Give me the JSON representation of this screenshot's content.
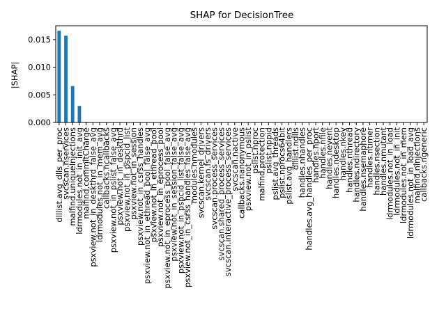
{
  "chart_data": {
    "type": "bar",
    "title": "SHAP for DecisionTree",
    "xlabel": "",
    "ylabel": "|SHAP|",
    "ylim": [
      0,
      0.0175
    ],
    "yticks": [
      "0.000",
      "0.005",
      "0.010",
      "0.015"
    ],
    "ytick_values": [
      0,
      0.005,
      0.01,
      0.015
    ],
    "bar_color": "#1f77b4",
    "grid": false,
    "legend": "none",
    "categories": [
      "dlllist.avg_dlls_per_proc",
      "svcscan.nservices",
      "malfind.uniqueInjections",
      "ldrmodules.not_in_init_avg",
      "malfind.commitCharge",
      "psxview.not_in_deskthrd_false_avg",
      "ldrmodules.not_in_mem_avg",
      "callbacks.ncallbacks",
      "psxview.not_in_pslist_false_avg",
      "psxview.not_in_deskthrd",
      "psxview.not_in_pspcid_list",
      "psxview.not_in_session",
      "psxview.not_in_csrss_handles",
      "psxview.not_in_ethread_pool_false_avg",
      "psxview.not_in_ethread_pool",
      "psxview.not_in_eprocess_pool",
      "psxview.not_in_eprocess_pool_false_avg",
      "psxview.not_in_session_false_avg",
      "psxview.not_in_pspcid_list_false_avg",
      "psxview.not_in_csrss_handles_false_avg",
      "modules.nmodules",
      "svcscan.kernel_drivers",
      "svcscan.fs_drivers",
      "svcscan.process_services",
      "svcscan.shared_process_services",
      "svcscan.interactive_process_services",
      "svcscan.nactive",
      "callbacks.nanonymous",
      "psxview.not_in_pslist",
      "pslist.nproc",
      "malfind.protection",
      "pslist.nppid",
      "pslist.avg_threads",
      "pslist.nprocs64bit",
      "pslist.avg_handlers",
      "dlllist.ndlls",
      "handles.nhandles",
      "handles.avg_handles_per_proc",
      "handles.nport",
      "handles.nfile",
      "handles.nevent",
      "handles.ndesktop",
      "handles.nkey",
      "handles.nthread",
      "handles.ndirectory",
      "handles.nsemaphore",
      "handles.ntimer",
      "handles.nsection",
      "handles.nmutant",
      "ldrmodules.not_in_load",
      "ldrmodules.not_in_init",
      "ldrmodules.not_in_mem",
      "ldrmodules.not_in_load_avg",
      "malfind.ninjections",
      "callbacks.ngeneric"
    ],
    "values": [
      0.0166,
      0.0157,
      0.0066,
      0.003,
      0.0001,
      0,
      0,
      0,
      0,
      0,
      0,
      0,
      0,
      0,
      0,
      0,
      0,
      0,
      0,
      0,
      0,
      0,
      0,
      0,
      0,
      0,
      0,
      0,
      0,
      0,
      0,
      0,
      0,
      0,
      0,
      0,
      0,
      0,
      0,
      0,
      0,
      0,
      0,
      0,
      0,
      0,
      0,
      0,
      0,
      0,
      0,
      0,
      0,
      0,
      0
    ]
  }
}
